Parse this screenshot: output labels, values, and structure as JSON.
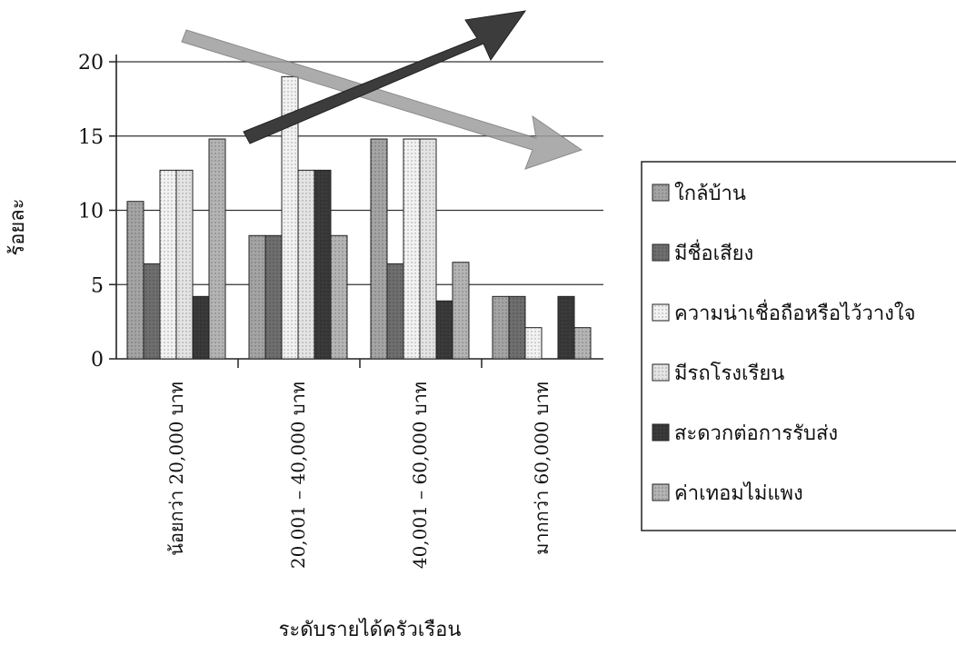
{
  "chart_data": {
    "type": "bar",
    "title": "",
    "xlabel": "ระดับรายได้ครัวเรือน",
    "ylabel": "ร้อยละ",
    "ylim": [
      0,
      20
    ],
    "yticks": [
      0,
      5,
      10,
      15,
      20
    ],
    "grid": true,
    "legend_position": "right",
    "categories": [
      "น้อยกว่า 20,000 บาท",
      "20,001 – 40,000 บาท",
      "40,001 – 60,000 บาท",
      "มากกว่า 60,000 บาท"
    ],
    "series": [
      {
        "name": "ใกล้บ้าน",
        "values": [
          10.6,
          8.3,
          14.8,
          4.2
        ],
        "color": "#a4a4a4"
      },
      {
        "name": "มีชื่อเสียง",
        "values": [
          6.4,
          8.3,
          6.4,
          4.2
        ],
        "color": "#6e6e6e"
      },
      {
        "name": "ความน่าเชื่อถือหรือไว้วางใจ",
        "values": [
          12.7,
          19.0,
          14.8,
          2.1
        ],
        "color": "#f2f2f2"
      },
      {
        "name": "มีรถโรงเรียน",
        "values": [
          12.7,
          12.7,
          14.8,
          0
        ],
        "color": "#e4e4e4"
      },
      {
        "name": "สะดวกต่อการรับส่ง",
        "values": [
          4.2,
          12.7,
          3.9,
          4.2
        ],
        "color": "#3a3a3a"
      },
      {
        "name": "ค่าเทอมไม่แพง",
        "values": [
          14.8,
          8.3,
          6.5,
          2.1
        ],
        "color": "#b4b4b4"
      }
    ]
  }
}
